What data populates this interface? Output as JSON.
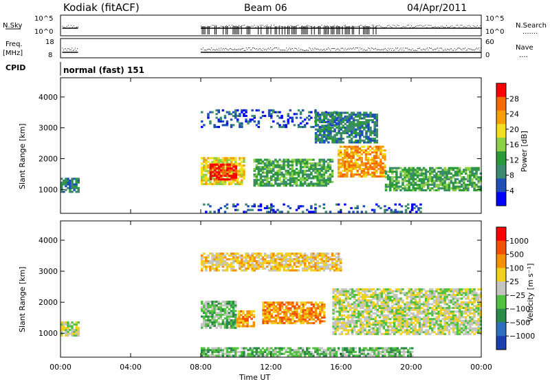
{
  "header": {
    "station": "Kodiak (fitACF)",
    "beam": "Beam 06",
    "date": "04/Apr/2011"
  },
  "summary_panels": {
    "nsky_label": "N.Sky",
    "nsearch_label": "N.Search",
    "nsky_ticks": [
      "10^5",
      "10^0"
    ],
    "nsearch_ticks": [
      "10^5",
      "10^0"
    ],
    "freq_label_line1": "Freq.",
    "freq_label_line2": "[MHz]",
    "freq_ticks": [
      "18",
      "8"
    ],
    "nave_label": "Nave",
    "nave_ticks": [
      "60",
      "0"
    ],
    "cpid_label": "CPID",
    "cpid_value": "normal (fast) 151"
  },
  "colors": {
    "power_scale": [
      "#0000ff",
      "#1f4fb8",
      "#3d8a6e",
      "#2a9a3a",
      "#8cd04a",
      "#f2e020",
      "#f5a000",
      "#f56a00",
      "#ff0000"
    ],
    "velocity_scale": [
      "#1b3fb0",
      "#2e6fbf",
      "#2a8a4a",
      "#52c040",
      "#c4c4c0",
      "#f2d020",
      "#f59000",
      "#f55000",
      "#ff0000"
    ],
    "ground_scatter": "#c4c4c0"
  },
  "chart_data": [
    {
      "type": "heatmap",
      "name": "power",
      "ylabel": "Slant Range [km]",
      "ylim": [
        250,
        4600
      ],
      "yticks": [
        "4000",
        "3000",
        "2000",
        "1000"
      ],
      "colorbar_label": "Power [dB]",
      "colorbar_ticks": [
        "28",
        "24",
        "20",
        "16",
        "12",
        "8",
        "4"
      ],
      "colorbar_range": [
        0,
        32
      ],
      "regions": [
        {
          "t0": 0.0,
          "t1": 1.0,
          "r0": 900,
          "r1": 1350,
          "level": 2
        },
        {
          "t0": 8.0,
          "t1": 10.5,
          "r0": 1150,
          "r1": 2000,
          "level": 5
        },
        {
          "t0": 8.5,
          "t1": 10.0,
          "r0": 1300,
          "r1": 1800,
          "level": 8
        },
        {
          "t0": 11.0,
          "t1": 15.5,
          "r0": 1100,
          "r1": 2000,
          "level": 3
        },
        {
          "t0": 15.8,
          "t1": 18.5,
          "r0": 1400,
          "r1": 2400,
          "level": 6
        },
        {
          "t0": 18.5,
          "t1": 24.0,
          "r0": 950,
          "r1": 1700,
          "level": 3
        },
        {
          "t0": 8.0,
          "t1": 16.0,
          "r0": 3000,
          "r1": 3600,
          "level": 1
        },
        {
          "t0": 14.5,
          "t1": 18.0,
          "r0": 2500,
          "r1": 3500,
          "level": 2
        },
        {
          "t0": 8.0,
          "t1": 20.5,
          "r0": 250,
          "r1": 500,
          "level": 1
        }
      ]
    },
    {
      "type": "heatmap",
      "name": "velocity",
      "ylabel": "Slant Range [km]",
      "ylim": [
        250,
        4600
      ],
      "yticks": [
        "4000",
        "3000",
        "2000",
        "1000"
      ],
      "colorbar_label": "Velocity [m s⁻¹]",
      "colorbar_ticks": [
        "1000",
        "500",
        "100",
        "25",
        "−25",
        "−100",
        "−500",
        "−1000"
      ],
      "regions": [
        {
          "t0": 0.0,
          "t1": 1.0,
          "r0": 900,
          "r1": 1350,
          "level": 4
        },
        {
          "t0": 8.0,
          "t1": 10.0,
          "r0": 1150,
          "r1": 2000,
          "level": 3
        },
        {
          "t0": 10.0,
          "t1": 11.0,
          "r0": 1200,
          "r1": 1700,
          "level": 6
        },
        {
          "t0": 11.5,
          "t1": 15.0,
          "r0": 1300,
          "r1": 2000,
          "level": 6
        },
        {
          "t0": 15.5,
          "t1": 24.0,
          "r0": 950,
          "r1": 2400,
          "level": 4
        },
        {
          "t0": 8.0,
          "t1": 16.0,
          "r0": 3000,
          "r1": 3600,
          "level": 5
        },
        {
          "t0": 8.0,
          "t1": 20.0,
          "r0": 250,
          "r1": 500,
          "level": 3
        }
      ]
    }
  ],
  "x_axis": {
    "label": "Time UT",
    "range_hours": [
      0,
      24
    ],
    "ticks": [
      "00:00",
      "04:00",
      "08:00",
      "12:00",
      "16:00",
      "20:00",
      "00:00"
    ]
  }
}
